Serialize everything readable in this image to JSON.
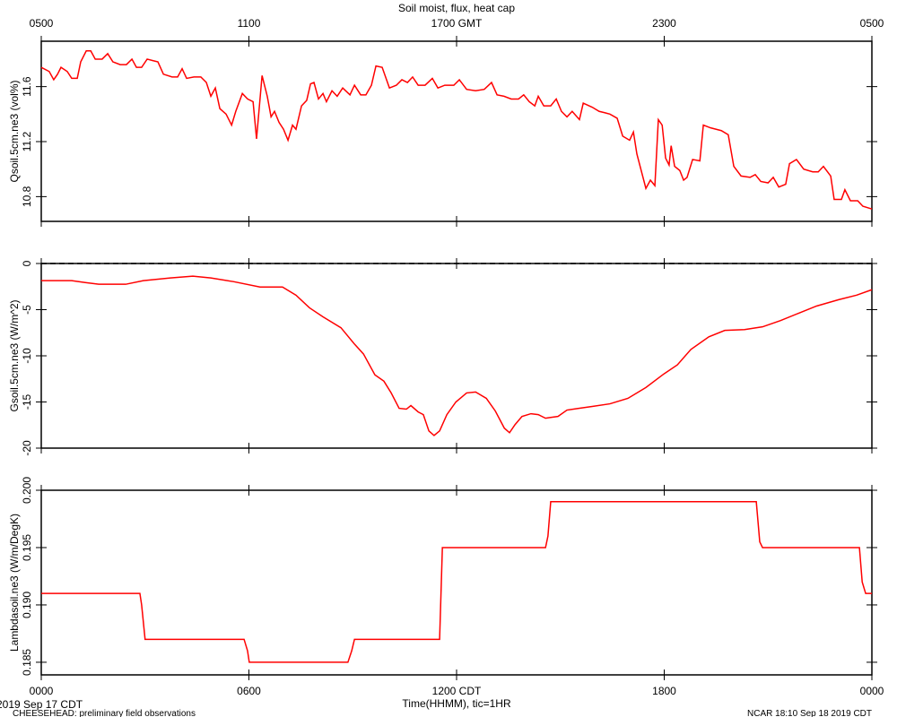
{
  "title": "Soil moist, flux, heat cap",
  "date_label": "2019 Sep 17 CDT",
  "project_note": "CHEESEHEAD: preliminary field observations",
  "credit": "NCAR 18:10 Sep 18 2019 CDT",
  "chart_data": [
    {
      "type": "line",
      "ylabel": "Qsoil.5cm.ne3 (vol%)",
      "color": "#ff0000",
      "xlim": [
        0,
        24
      ],
      "ylim": [
        10.62,
        11.93
      ],
      "yticks": [
        10.8,
        11.2,
        11.6
      ],
      "x2ticks": [
        {
          "value": 0,
          "label": "0500"
        },
        {
          "value": 6,
          "label": "1100"
        },
        {
          "value": 12,
          "label": "1700 GMT"
        },
        {
          "value": 18,
          "label": "2300"
        },
        {
          "value": 24,
          "label": "0500"
        }
      ],
      "x": [
        0.0,
        0.23,
        0.36,
        0.47,
        0.57,
        0.75,
        0.88,
        1.04,
        1.14,
        1.3,
        1.43,
        1.56,
        1.76,
        1.92,
        2.07,
        2.28,
        2.46,
        2.62,
        2.75,
        2.9,
        3.06,
        3.21,
        3.37,
        3.53,
        3.78,
        3.94,
        4.07,
        4.2,
        4.41,
        4.61,
        4.77,
        4.9,
        5.03,
        5.16,
        5.34,
        5.5,
        5.62,
        5.81,
        5.96,
        6.12,
        6.22,
        6.38,
        6.53,
        6.64,
        6.74,
        6.87,
        7.0,
        7.13,
        7.26,
        7.36,
        7.52,
        7.67,
        7.78,
        7.88,
        8.01,
        8.14,
        8.24,
        8.4,
        8.55,
        8.71,
        8.92,
        9.05,
        9.23,
        9.38,
        9.54,
        9.67,
        9.85,
        10.06,
        10.26,
        10.42,
        10.58,
        10.73,
        10.89,
        11.09,
        11.3,
        11.46,
        11.66,
        11.92,
        12.08,
        12.29,
        12.55,
        12.8,
        13.01,
        13.17,
        13.37,
        13.58,
        13.79,
        13.94,
        14.1,
        14.26,
        14.36,
        14.52,
        14.72,
        14.88,
        15.03,
        15.19,
        15.34,
        15.55,
        15.66,
        15.92,
        16.12,
        16.28,
        16.43,
        16.64,
        16.8,
        17.0,
        17.11,
        17.21,
        17.47,
        17.6,
        17.73,
        17.83,
        17.94,
        18.04,
        18.14,
        18.2,
        18.3,
        18.45,
        18.56,
        18.66,
        18.82,
        19.03,
        19.13,
        19.34,
        19.65,
        19.85,
        20.01,
        20.22,
        20.48,
        20.63,
        20.79,
        21.0,
        21.15,
        21.31,
        21.51,
        21.62,
        21.82,
        22.03,
        22.29,
        22.45,
        22.6,
        22.81,
        22.91,
        23.12,
        23.22,
        23.38,
        23.59,
        23.74,
        24.0
      ],
      "values": [
        11.74,
        11.71,
        11.65,
        11.69,
        11.74,
        11.71,
        11.66,
        11.66,
        11.78,
        11.86,
        11.86,
        11.8,
        11.8,
        11.84,
        11.78,
        11.76,
        11.76,
        11.8,
        11.74,
        11.74,
        11.8,
        11.79,
        11.78,
        11.69,
        11.67,
        11.67,
        11.73,
        11.66,
        11.67,
        11.67,
        11.63,
        11.53,
        11.59,
        11.44,
        11.4,
        11.32,
        11.42,
        11.55,
        11.51,
        11.49,
        11.22,
        11.68,
        11.53,
        11.38,
        11.42,
        11.34,
        11.29,
        11.21,
        11.32,
        11.29,
        11.46,
        11.5,
        11.62,
        11.63,
        11.51,
        11.55,
        11.49,
        11.57,
        11.53,
        11.59,
        11.54,
        11.61,
        11.54,
        11.54,
        11.61,
        11.75,
        11.74,
        11.59,
        11.61,
        11.65,
        11.63,
        11.67,
        11.61,
        11.61,
        11.66,
        11.59,
        11.61,
        11.61,
        11.65,
        11.58,
        11.57,
        11.58,
        11.63,
        11.54,
        11.53,
        11.51,
        11.51,
        11.54,
        11.49,
        11.46,
        11.53,
        11.46,
        11.46,
        11.51,
        11.42,
        11.38,
        11.42,
        11.36,
        11.48,
        11.45,
        11.42,
        11.41,
        11.4,
        11.37,
        11.24,
        11.21,
        11.27,
        11.11,
        10.86,
        10.92,
        10.88,
        11.36,
        11.32,
        11.08,
        11.03,
        11.17,
        11.02,
        10.99,
        10.92,
        10.94,
        11.07,
        11.06,
        11.32,
        11.3,
        11.28,
        11.25,
        11.02,
        10.95,
        10.94,
        10.96,
        10.91,
        10.9,
        10.94,
        10.87,
        10.89,
        11.04,
        11.07,
        11.0,
        10.98,
        10.98,
        11.02,
        10.95,
        10.78,
        10.78,
        10.85,
        10.77,
        10.77,
        10.73,
        10.71
      ]
    },
    {
      "type": "line",
      "ylabel": "Gsoil.5cm.ne3 (W/m^2)",
      "color": "#ff0000",
      "xlim": [
        0,
        24
      ],
      "ylim": [
        -20,
        0
      ],
      "yticks": [
        0,
        -5,
        -10,
        -15,
        -20
      ],
      "hline": 0,
      "x": [
        0,
        0.88,
        1.27,
        1.66,
        2.44,
        2.95,
        3.73,
        4.38,
        4.9,
        5.55,
        6.32,
        6.97,
        7.36,
        7.75,
        8.14,
        8.66,
        9.05,
        9.31,
        9.64,
        9.9,
        10.11,
        10.34,
        10.55,
        10.68,
        10.89,
        11.04,
        11.2,
        11.35,
        11.51,
        11.72,
        11.98,
        12.29,
        12.55,
        12.86,
        13.12,
        13.38,
        13.53,
        13.69,
        13.89,
        14.15,
        14.36,
        14.57,
        14.72,
        14.93,
        15.19,
        15.53,
        15.92,
        16.43,
        16.95,
        17.47,
        17.99,
        18.38,
        18.77,
        19.29,
        19.75,
        20.32,
        20.84,
        21.36,
        21.88,
        22.4,
        23.04,
        23.56,
        24.0
      ],
      "values": [
        -1.86,
        -1.86,
        -2.06,
        -2.25,
        -2.25,
        -1.86,
        -1.57,
        -1.37,
        -1.57,
        -1.96,
        -2.55,
        -2.55,
        -3.43,
        -4.8,
        -5.78,
        -6.96,
        -8.73,
        -9.8,
        -12.06,
        -12.75,
        -14.02,
        -15.69,
        -15.78,
        -15.39,
        -16.08,
        -16.37,
        -18.14,
        -18.63,
        -18.14,
        -16.37,
        -15.0,
        -14.02,
        -13.92,
        -14.61,
        -15.98,
        -17.84,
        -18.33,
        -17.45,
        -16.57,
        -16.27,
        -16.37,
        -16.76,
        -16.67,
        -16.57,
        -15.88,
        -15.69,
        -15.49,
        -15.2,
        -14.61,
        -13.43,
        -11.96,
        -10.98,
        -9.31,
        -7.94,
        -7.25,
        -7.16,
        -6.86,
        -6.18,
        -5.39,
        -4.61,
        -3.92,
        -3.43,
        -2.84
      ]
    },
    {
      "type": "line",
      "ylabel": "Lambdasoil.ne3 (W/m/DegK)",
      "color": "#ff0000",
      "xlim": [
        0,
        24
      ],
      "ylim": [
        0.1839,
        0.2
      ],
      "yticks": [
        {
          "value": 0.2,
          "label": "0.200"
        },
        0.195,
        {
          "value": 0.19,
          "label": "0.190"
        },
        0.185
      ],
      "xlabel": "Time(HHMM), tic=1HR",
      "xticks": [
        {
          "value": 0,
          "label": "0000"
        },
        {
          "value": 6,
          "label": "0600"
        },
        {
          "value": 12,
          "label": "1200 CDT"
        },
        {
          "value": 18,
          "label": "1800"
        },
        {
          "value": 24,
          "label": "0000"
        }
      ],
      "x": [
        0,
        2.85,
        2.9,
        3.0,
        5.86,
        5.96,
        6.01,
        8.86,
        8.97,
        9.05,
        11.51,
        11.59,
        14.57,
        14.64,
        14.72,
        20.66,
        20.76,
        20.84,
        23.64,
        23.72,
        23.82,
        24.0
      ],
      "values": [
        0.191,
        0.191,
        0.19,
        0.187,
        0.187,
        0.186,
        0.185,
        0.185,
        0.186,
        0.187,
        0.187,
        0.195,
        0.195,
        0.196,
        0.199,
        0.199,
        0.1955,
        0.195,
        0.195,
        0.192,
        0.191,
        0.191
      ]
    }
  ]
}
